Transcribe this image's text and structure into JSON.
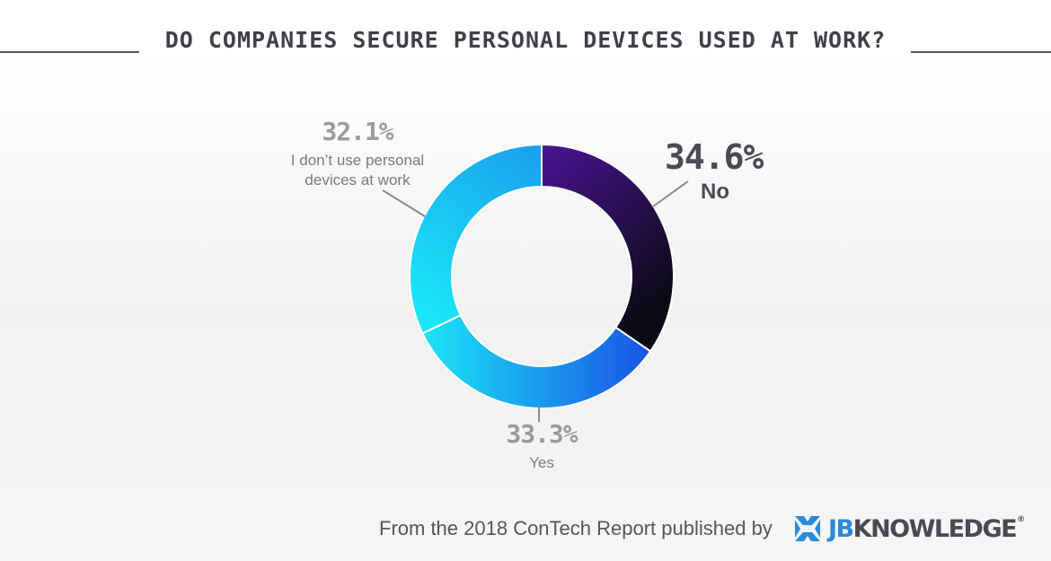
{
  "title": "DO COMPANIES SECURE PERSONAL DEVICES USED AT WORK?",
  "footer": {
    "text": "From the 2018 ConTech Report published by",
    "logo_jb": "JB",
    "logo_rest": "KNOWLEDGE",
    "logo_reg": "®"
  },
  "chart_data": {
    "type": "pie",
    "style": "donut",
    "title": "DO COMPANIES SECURE PERSONAL DEVICES USED AT WORK?",
    "categories": [
      "No",
      "Yes",
      "I don’t use personal devices at work"
    ],
    "values": [
      34.6,
      33.3,
      32.1
    ],
    "value_labels": [
      "34.6%",
      "33.3%",
      "32.1%"
    ],
    "gradients": [
      [
        "#4a1496",
        "#0a0a12"
      ],
      [
        "#1a55e6",
        "#1ae6f7"
      ],
      [
        "#1ae6f7",
        "#1aa0ee"
      ]
    ],
    "legend": "none"
  },
  "labels": {
    "no": {
      "pct": "34.6%",
      "name": "No"
    },
    "yes": {
      "pct": "33.3%",
      "name": "Yes"
    },
    "idu": {
      "pct": "32.1%",
      "name": "I don’t use personal devices at work"
    }
  }
}
